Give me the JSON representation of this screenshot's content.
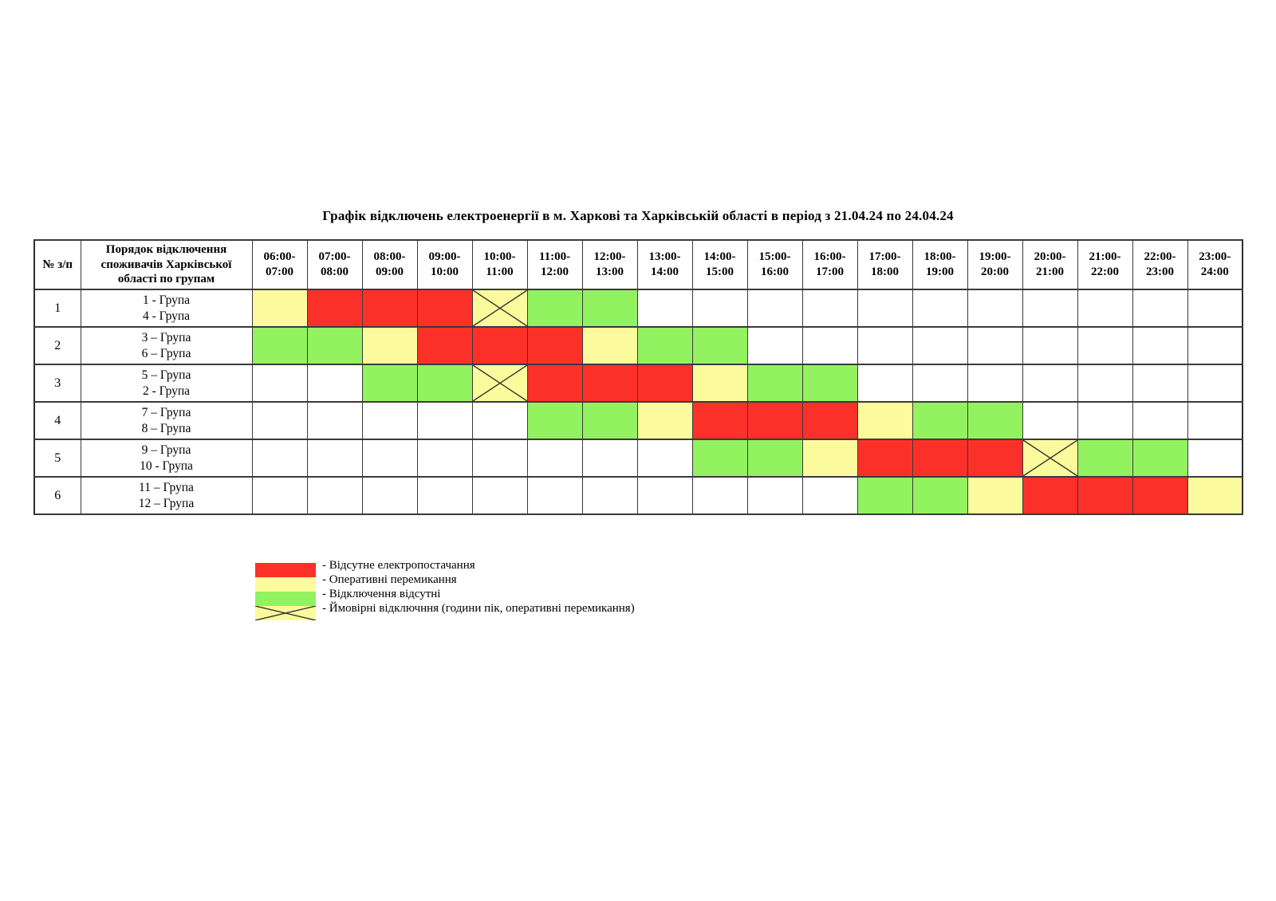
{
  "title": "Графік відключень електроенергії в м. Харкові та Харківській області в період з 21.04.24 по 24.04.24",
  "table": {
    "header": {
      "num": "№ з/п",
      "group": "Порядок відключення\nспоживачів Харківської\nобласті по групам",
      "times": [
        "06:00-\n07:00",
        "07:00-\n08:00",
        "08:00-\n09:00",
        "09:00-\n10:00",
        "10:00-\n11:00",
        "11:00-\n12:00",
        "12:00-\n13:00",
        "13:00-\n14:00",
        "14:00-\n15:00",
        "15:00-\n16:00",
        "16:00-\n17:00",
        "17:00-\n18:00",
        "18:00-\n19:00",
        "19:00-\n20:00",
        "20:00-\n21:00",
        "21:00-\n22:00",
        "22:00-\n23:00",
        "23:00-\n24:00"
      ]
    },
    "rows": [
      {
        "num": "1",
        "groups": "1 - Група\n4 -  Група",
        "cells": [
          "yellow",
          "red",
          "red",
          "red",
          "x",
          "green",
          "green",
          "white",
          "white",
          "white",
          "white",
          "white",
          "white",
          "white",
          "white",
          "white",
          "white",
          "white"
        ]
      },
      {
        "num": "2",
        "groups": "3 – Група\n6 – Група",
        "cells": [
          "green",
          "green",
          "yellow",
          "red",
          "red",
          "red",
          "yellow",
          "green",
          "green",
          "white",
          "white",
          "white",
          "white",
          "white",
          "white",
          "white",
          "white",
          "white"
        ]
      },
      {
        "num": "3",
        "groups": "5 – Група\n2  - Група",
        "cells": [
          "white",
          "white",
          "green",
          "green",
          "x",
          "red",
          "red",
          "red",
          "yellow",
          "green",
          "green",
          "white",
          "white",
          "white",
          "white",
          "white",
          "white",
          "white"
        ]
      },
      {
        "num": "4",
        "groups": "7 – Група\n8 – Група",
        "cells": [
          "white",
          "white",
          "white",
          "white",
          "white",
          "green",
          "green",
          "yellow",
          "red",
          "red",
          "red",
          "yellow",
          "green",
          "green",
          "white",
          "white",
          "white",
          "white"
        ]
      },
      {
        "num": "5",
        "groups": "9 – Група\n10 - Група",
        "cells": [
          "white",
          "white",
          "white",
          "white",
          "white",
          "white",
          "white",
          "white",
          "green",
          "green",
          "yellow",
          "red",
          "red",
          "red",
          "x",
          "green",
          "green",
          "white"
        ]
      },
      {
        "num": "6",
        "groups": "11 – Група\n12 – Група",
        "cells": [
          "white",
          "white",
          "white",
          "white",
          "white",
          "white",
          "white",
          "white",
          "white",
          "white",
          "white",
          "green",
          "green",
          "yellow",
          "red",
          "red",
          "red",
          "yellow"
        ]
      }
    ]
  },
  "legend": {
    "items": [
      {
        "type": "red",
        "label": "- Відсутне електропостачання"
      },
      {
        "type": "yellow",
        "label": "- Оперативні перемикання"
      },
      {
        "type": "green",
        "label": "- Відключення відсутні"
      },
      {
        "type": "x",
        "label": "- Ймовірні відключння (години пік, оперативні перемикання)"
      }
    ]
  },
  "colors": {
    "red": "#fb3129",
    "yellow": "#fbfb9d",
    "green": "#92f260",
    "white": "#ffffff",
    "x_background": "#fbfb9d",
    "x_stroke": "#333333",
    "border": "#3a3a3a"
  },
  "cell_legend_meaning": {
    "red": "Відсутне електропостачання",
    "yellow": "Оперативні перемикання",
    "green": "Відключення відсутні",
    "x": "Ймовірні відключння (години пік, оперативні перемикання)",
    "white": ""
  }
}
